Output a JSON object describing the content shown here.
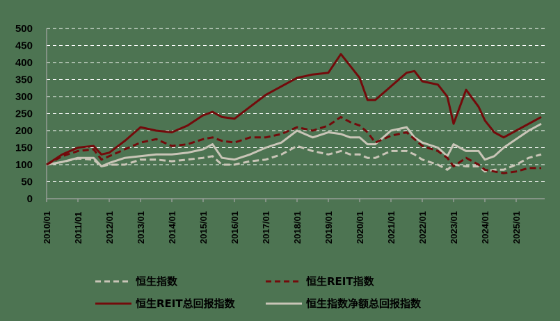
{
  "chart_data": {
    "type": "line",
    "title": "",
    "xlabel": "",
    "ylabel": "",
    "ylim": [
      0,
      500
    ],
    "yticks": [
      0,
      50,
      100,
      150,
      200,
      250,
      300,
      350,
      400,
      450,
      500
    ],
    "grid": "horizontal dashed",
    "legend_position": "bottom",
    "x_tick_labels": [
      "2010/01",
      "2011/01",
      "2012/01",
      "2013/01",
      "2014/01",
      "2015/01",
      "2016/01",
      "2017/01",
      "2018/01",
      "2019/01",
      "2020/01",
      "2021/01",
      "2022/01",
      "2023/01",
      "2024/01",
      "2025/01"
    ],
    "x": [
      2010.0,
      2010.5,
      2011.0,
      2011.5,
      2011.75,
      2012.0,
      2012.5,
      2013.0,
      2013.5,
      2014.0,
      2014.5,
      2015.0,
      2015.3,
      2015.6,
      2016.0,
      2016.5,
      2017.0,
      2017.5,
      2018.0,
      2018.5,
      2019.0,
      2019.4,
      2019.7,
      2020.0,
      2020.25,
      2020.5,
      2021.0,
      2021.5,
      2021.75,
      2022.0,
      2022.5,
      2022.8,
      2023.0,
      2023.4,
      2023.8,
      2024.0,
      2024.3,
      2024.6,
      2025.0,
      2025.4,
      2025.8
    ],
    "series": [
      {
        "name": "恒生指数",
        "style": "dashed",
        "color": "#c9c5b7",
        "values": [
          100,
          108,
          118,
          115,
          95,
          100,
          100,
          115,
          115,
          110,
          115,
          120,
          125,
          100,
          100,
          110,
          115,
          130,
          155,
          140,
          130,
          140,
          130,
          130,
          120,
          120,
          140,
          140,
          130,
          115,
          100,
          85,
          100,
          95,
          95,
          80,
          85,
          85,
          100,
          120,
          130
        ]
      },
      {
        "name": "恒生REIT指数",
        "style": "dashed",
        "color": "#730a0b",
        "values": [
          100,
          125,
          140,
          145,
          115,
          125,
          145,
          165,
          175,
          155,
          160,
          175,
          180,
          170,
          165,
          180,
          180,
          190,
          210,
          200,
          215,
          240,
          225,
          215,
          195,
          165,
          185,
          195,
          175,
          155,
          140,
          120,
          95,
          120,
          100,
          85,
          80,
          75,
          80,
          90,
          90
        ]
      },
      {
        "name": "恒生REIT总回报指数",
        "style": "solid",
        "color": "#730a0b",
        "values": [
          100,
          130,
          150,
          155,
          130,
          135,
          170,
          210,
          200,
          195,
          215,
          245,
          255,
          240,
          235,
          270,
          305,
          330,
          355,
          365,
          370,
          425,
          390,
          355,
          290,
          290,
          330,
          370,
          375,
          345,
          335,
          300,
          220,
          320,
          270,
          230,
          195,
          180,
          200,
          220,
          240
        ]
      },
      {
        "name": "恒生指数净额总回报指数",
        "style": "solid",
        "color": "#c9c5b7",
        "values": [
          100,
          108,
          120,
          120,
          95,
          105,
          120,
          125,
          130,
          130,
          135,
          145,
          160,
          120,
          115,
          130,
          150,
          165,
          200,
          180,
          195,
          190,
          180,
          180,
          160,
          160,
          200,
          210,
          180,
          165,
          150,
          125,
          160,
          140,
          140,
          115,
          125,
          150,
          175,
          200,
          220
        ]
      }
    ]
  },
  "legend": {
    "items": [
      {
        "label": "恒生指数"
      },
      {
        "label": "恒生REIT指数"
      },
      {
        "label": "恒生REIT总回报指数"
      },
      {
        "label": "恒生指数净额总回报指数"
      }
    ]
  }
}
